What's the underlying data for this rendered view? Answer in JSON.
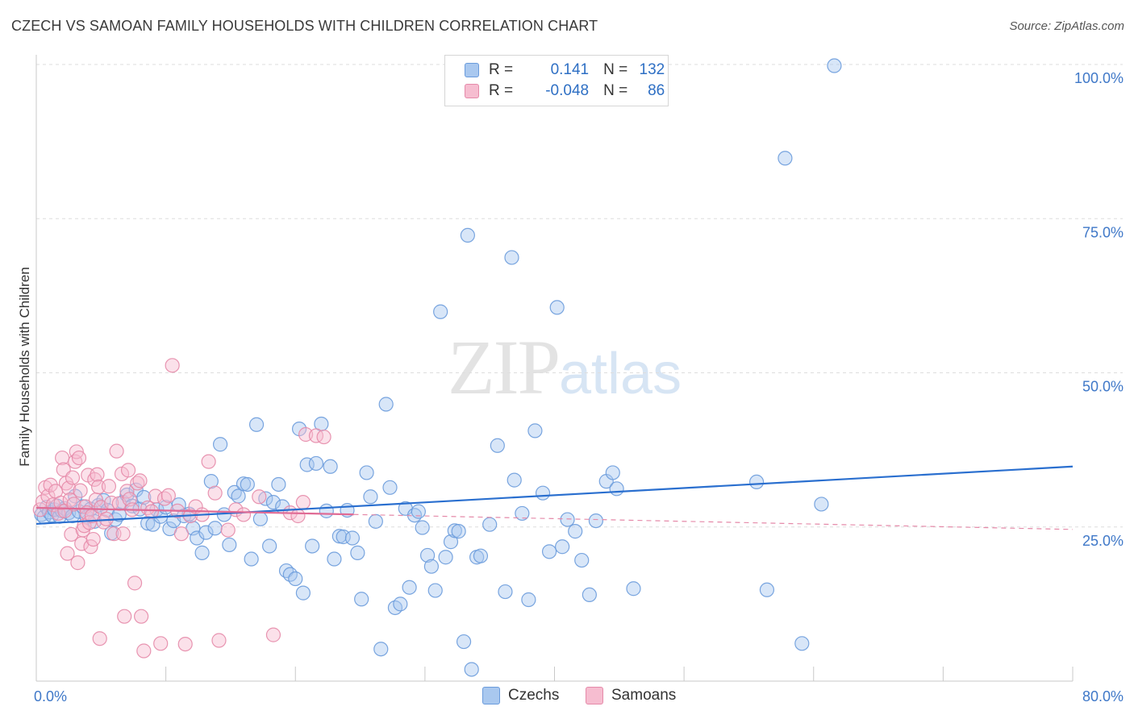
{
  "header": {
    "title": "CZECH VS SAMOAN FAMILY HOUSEHOLDS WITH CHILDREN CORRELATION CHART",
    "source": "Source: ZipAtlas.com"
  },
  "legend": {
    "rows": [
      {
        "r_label": "R =",
        "r_value": "0.141",
        "n_label": "N =",
        "n_value": "132",
        "color": "#a9c8ef",
        "stroke": "#6a9bdc"
      },
      {
        "r_label": "R =",
        "r_value": "-0.048",
        "n_label": "N =",
        "n_value": "86",
        "color": "#f6bdd0",
        "stroke": "#e58aa9"
      }
    ]
  },
  "bottom_legend": {
    "items": [
      {
        "label": "Czechs",
        "color": "#a9c8ef",
        "stroke": "#6a9bdc"
      },
      {
        "label": "Samoans",
        "color": "#f6bdd0",
        "stroke": "#e58aa9"
      }
    ]
  },
  "watermark": {
    "zip": "ZIP",
    "atlas": "atlas"
  },
  "chart_data": {
    "type": "scatter",
    "title": "CZECH VS SAMOAN FAMILY HOUSEHOLDS WITH CHILDREN CORRELATION CHART",
    "xlabel": "",
    "ylabel": "Family Households with Children",
    "xlim": [
      0,
      80
    ],
    "ylim": [
      0,
      100
    ],
    "x_tick_labels": [
      "0.0%",
      "80.0%"
    ],
    "y_ticks": [
      25,
      50,
      75,
      100
    ],
    "y_tick_labels": [
      "25.0%",
      "50.0%",
      "75.0%",
      "100.0%"
    ],
    "grid": true,
    "legend_position": "top-center",
    "series": [
      {
        "name": "Czechs",
        "color": "#6a9bdc",
        "fill": "#a9c8ef",
        "trend": {
          "x": [
            0,
            80
          ],
          "y": [
            25.5,
            34.8
          ],
          "style": "solid"
        },
        "points": [
          [
            0.4,
            27.0
          ],
          [
            0.6,
            26.6
          ],
          [
            0.8,
            28.2
          ],
          [
            1.0,
            27.4
          ],
          [
            1.2,
            26.9
          ],
          [
            1.4,
            27.8
          ],
          [
            1.6,
            28.4
          ],
          [
            1.8,
            26.7
          ],
          [
            2.0,
            27.6
          ],
          [
            2.2,
            28.0
          ],
          [
            2.5,
            27.3
          ],
          [
            2.8,
            26.8
          ],
          [
            3.0,
            30.0
          ],
          [
            3.3,
            27.5
          ],
          [
            3.6,
            28.3
          ],
          [
            3.9,
            26.6
          ],
          [
            4.2,
            27.9
          ],
          [
            4.5,
            25.9
          ],
          [
            4.8,
            28.5
          ],
          [
            5.2,
            29.3
          ],
          [
            5.5,
            27.7
          ],
          [
            5.8,
            24.0
          ],
          [
            6.1,
            26.2
          ],
          [
            6.4,
            27.0
          ],
          [
            6.7,
            29.0
          ],
          [
            7.0,
            30.2
          ],
          [
            7.4,
            28.4
          ],
          [
            7.7,
            31.0
          ],
          [
            8.0,
            27.9
          ],
          [
            8.3,
            29.8
          ],
          [
            8.6,
            25.6
          ],
          [
            9.0,
            25.4
          ],
          [
            9.3,
            27.8
          ],
          [
            9.6,
            26.7
          ],
          [
            10.0,
            28.2
          ],
          [
            10.3,
            24.7
          ],
          [
            10.6,
            26.0
          ],
          [
            11.0,
            28.6
          ],
          [
            11.4,
            26.8
          ],
          [
            11.8,
            27.1
          ],
          [
            12.1,
            24.8
          ],
          [
            12.4,
            23.2
          ],
          [
            12.8,
            20.8
          ],
          [
            13.1,
            24.1
          ],
          [
            13.5,
            32.4
          ],
          [
            13.8,
            24.8
          ],
          [
            14.2,
            38.4
          ],
          [
            14.5,
            27.0
          ],
          [
            14.9,
            22.1
          ],
          [
            15.3,
            30.6
          ],
          [
            15.6,
            30.0
          ],
          [
            16.0,
            32.0
          ],
          [
            16.3,
            31.9
          ],
          [
            16.6,
            19.8
          ],
          [
            17.0,
            41.6
          ],
          [
            17.3,
            26.3
          ],
          [
            17.7,
            29.6
          ],
          [
            18.0,
            21.9
          ],
          [
            18.3,
            29.0
          ],
          [
            18.7,
            31.9
          ],
          [
            19.0,
            28.3
          ],
          [
            19.3,
            17.9
          ],
          [
            19.6,
            17.3
          ],
          [
            20.0,
            16.6
          ],
          [
            20.3,
            40.9
          ],
          [
            20.6,
            14.3
          ],
          [
            20.9,
            35.1
          ],
          [
            21.3,
            21.9
          ],
          [
            21.6,
            35.3
          ],
          [
            22.0,
            41.7
          ],
          [
            22.4,
            27.6
          ],
          [
            22.7,
            34.8
          ],
          [
            23.0,
            19.8
          ],
          [
            23.4,
            23.5
          ],
          [
            23.7,
            23.4
          ],
          [
            24.0,
            27.7
          ],
          [
            24.4,
            23.2
          ],
          [
            24.8,
            20.8
          ],
          [
            25.1,
            13.3
          ],
          [
            25.5,
            33.8
          ],
          [
            25.8,
            29.9
          ],
          [
            26.2,
            25.9
          ],
          [
            26.6,
            5.2
          ],
          [
            27.0,
            44.9
          ],
          [
            27.3,
            31.4
          ],
          [
            27.7,
            11.9
          ],
          [
            28.1,
            12.5
          ],
          [
            28.5,
            28.0
          ],
          [
            28.8,
            15.2
          ],
          [
            29.2,
            26.9
          ],
          [
            29.5,
            27.5
          ],
          [
            29.8,
            24.9
          ],
          [
            30.2,
            20.4
          ],
          [
            30.5,
            18.6
          ],
          [
            30.8,
            14.7
          ],
          [
            31.2,
            59.9
          ],
          [
            31.6,
            20.1
          ],
          [
            32.0,
            22.6
          ],
          [
            32.3,
            24.4
          ],
          [
            32.6,
            24.3
          ],
          [
            33.0,
            6.4
          ],
          [
            33.3,
            72.3
          ],
          [
            33.6,
            1.9
          ],
          [
            34.0,
            20.1
          ],
          [
            34.3,
            20.3
          ],
          [
            35.0,
            25.4
          ],
          [
            35.6,
            38.2
          ],
          [
            36.2,
            14.5
          ],
          [
            36.7,
            68.7
          ],
          [
            36.9,
            32.6
          ],
          [
            37.5,
            27.2
          ],
          [
            38.0,
            13.2
          ],
          [
            38.5,
            40.6
          ],
          [
            39.1,
            30.5
          ],
          [
            39.6,
            21.0
          ],
          [
            40.2,
            60.6
          ],
          [
            40.6,
            21.8
          ],
          [
            41.0,
            26.2
          ],
          [
            41.6,
            24.3
          ],
          [
            42.1,
            19.6
          ],
          [
            42.7,
            14.0
          ],
          [
            43.2,
            26.0
          ],
          [
            44.0,
            32.4
          ],
          [
            44.5,
            33.8
          ],
          [
            44.8,
            31.2
          ],
          [
            46.1,
            15.0
          ],
          [
            55.6,
            32.3
          ],
          [
            56.4,
            14.8
          ],
          [
            57.8,
            84.8
          ],
          [
            59.1,
            6.1
          ],
          [
            60.6,
            28.7
          ],
          [
            61.6,
            99.8
          ]
        ]
      },
      {
        "name": "Samoans",
        "color": "#e58aa9",
        "fill": "#f6bdd0",
        "trend": {
          "x": [
            0,
            80
          ],
          "y": [
            28.1,
            24.6
          ],
          "style": "solid-then-dashed",
          "solid_until": 24.5
        },
        "points": [
          [
            0.3,
            27.8
          ],
          [
            0.5,
            29.1
          ],
          [
            0.7,
            31.4
          ],
          [
            0.9,
            30.0
          ],
          [
            1.1,
            31.8
          ],
          [
            1.3,
            28.6
          ],
          [
            1.5,
            30.8
          ],
          [
            1.7,
            27.2
          ],
          [
            1.9,
            28.9
          ],
          [
            2.0,
            36.2
          ],
          [
            2.1,
            34.3
          ],
          [
            2.2,
            27.6
          ],
          [
            2.3,
            32.1
          ],
          [
            2.4,
            20.7
          ],
          [
            2.5,
            31.3
          ],
          [
            2.6,
            29.4
          ],
          [
            2.7,
            23.8
          ],
          [
            2.8,
            33.0
          ],
          [
            2.9,
            28.7
          ],
          [
            3.0,
            35.6
          ],
          [
            3.1,
            37.2
          ],
          [
            3.2,
            19.2
          ],
          [
            3.3,
            36.2
          ],
          [
            3.4,
            30.9
          ],
          [
            3.5,
            22.3
          ],
          [
            3.6,
            24.5
          ],
          [
            3.7,
            25.2
          ],
          [
            3.8,
            28.3
          ],
          [
            3.9,
            27.3
          ],
          [
            4.0,
            33.4
          ],
          [
            4.1,
            25.7
          ],
          [
            4.2,
            21.8
          ],
          [
            4.3,
            26.8
          ],
          [
            4.4,
            23.0
          ],
          [
            4.5,
            32.7
          ],
          [
            4.6,
            29.4
          ],
          [
            4.7,
            33.5
          ],
          [
            4.8,
            31.5
          ],
          [
            4.9,
            6.9
          ],
          [
            5.0,
            28.2
          ],
          [
            5.2,
            25.8
          ],
          [
            5.4,
            26.3
          ],
          [
            5.6,
            31.6
          ],
          [
            5.8,
            28.9
          ],
          [
            6.0,
            23.9
          ],
          [
            6.2,
            37.3
          ],
          [
            6.4,
            28.8
          ],
          [
            6.6,
            33.6
          ],
          [
            6.7,
            23.9
          ],
          [
            6.8,
            10.5
          ],
          [
            7.0,
            30.8
          ],
          [
            7.1,
            34.2
          ],
          [
            7.2,
            29.5
          ],
          [
            7.4,
            27.8
          ],
          [
            7.6,
            15.9
          ],
          [
            7.8,
            32.1
          ],
          [
            8.0,
            32.5
          ],
          [
            8.1,
            10.5
          ],
          [
            8.3,
            4.9
          ],
          [
            8.6,
            28.1
          ],
          [
            8.9,
            27.5
          ],
          [
            9.2,
            30.0
          ],
          [
            9.6,
            6.1
          ],
          [
            9.9,
            29.6
          ],
          [
            10.2,
            30.1
          ],
          [
            10.5,
            51.2
          ],
          [
            10.9,
            27.6
          ],
          [
            11.2,
            23.9
          ],
          [
            11.5,
            6.0
          ],
          [
            11.9,
            26.8
          ],
          [
            12.3,
            28.3
          ],
          [
            12.8,
            27.0
          ],
          [
            13.3,
            35.6
          ],
          [
            13.8,
            30.5
          ],
          [
            14.1,
            6.6
          ],
          [
            14.8,
            24.5
          ],
          [
            15.4,
            27.8
          ],
          [
            16.0,
            27.0
          ],
          [
            17.2,
            29.9
          ],
          [
            18.3,
            7.5
          ],
          [
            19.6,
            27.3
          ],
          [
            20.2,
            26.8
          ],
          [
            20.6,
            29.0
          ],
          [
            20.8,
            40.0
          ],
          [
            21.6,
            39.8
          ],
          [
            22.2,
            39.6
          ]
        ]
      }
    ]
  }
}
